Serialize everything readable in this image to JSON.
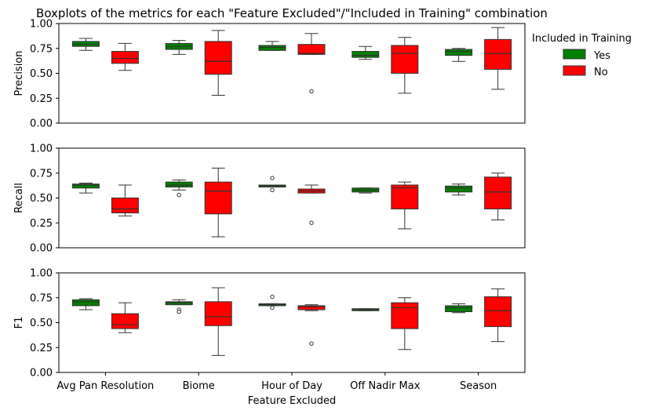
{
  "chart_data": {
    "type": "boxplot",
    "title": "Boxplots of the metrics for each \"Feature Excluded\"/\"Included in Training\" combination",
    "xlabel": "Feature Excluded",
    "categories": [
      "Avg Pan Resolution",
      "Biome",
      "Hour of Day",
      "Off Nadir Max",
      "Season"
    ],
    "legend": {
      "title": "Included in Training",
      "placement": "right-top",
      "entries": [
        {
          "label": "Yes",
          "color": "#008000"
        },
        {
          "label": "No",
          "color": "#ff0000"
        }
      ]
    },
    "colors": {
      "yes": "#008000",
      "no": "#ff0000",
      "frame": "#000000"
    },
    "grid": false,
    "panels": [
      {
        "ylabel": "Precision",
        "ylim": [
          0,
          1
        ],
        "yticks": [
          "0.00",
          "0.25",
          "0.50",
          "0.75",
          "1.00"
        ],
        "boxes": [
          {
            "category": "Avg Pan Resolution",
            "group": "Yes",
            "whislo": 0.73,
            "q1": 0.77,
            "med": 0.79,
            "q3": 0.82,
            "whishi": 0.85,
            "fliers": []
          },
          {
            "category": "Avg Pan Resolution",
            "group": "No",
            "whislo": 0.53,
            "q1": 0.6,
            "med": 0.65,
            "q3": 0.72,
            "whishi": 0.8,
            "fliers": []
          },
          {
            "category": "Biome",
            "group": "Yes",
            "whislo": 0.69,
            "q1": 0.74,
            "med": 0.77,
            "q3": 0.8,
            "whishi": 0.83,
            "fliers": []
          },
          {
            "category": "Biome",
            "group": "No",
            "whislo": 0.28,
            "q1": 0.49,
            "med": 0.62,
            "q3": 0.82,
            "whishi": 0.93,
            "fliers": []
          },
          {
            "category": "Hour of Day",
            "group": "Yes",
            "whislo": 0.73,
            "q1": 0.73,
            "med": 0.76,
            "q3": 0.78,
            "whishi": 0.82,
            "fliers": []
          },
          {
            "category": "Hour of Day",
            "group": "No",
            "whislo": 0.69,
            "q1": 0.69,
            "med": 0.7,
            "q3": 0.79,
            "whishi": 0.9,
            "fliers": [
              0.32
            ]
          },
          {
            "category": "Off Nadir Max",
            "group": "Yes",
            "whislo": 0.64,
            "q1": 0.66,
            "med": 0.68,
            "q3": 0.72,
            "whishi": 0.77,
            "fliers": []
          },
          {
            "category": "Off Nadir Max",
            "group": "No",
            "whislo": 0.3,
            "q1": 0.5,
            "med": 0.7,
            "q3": 0.78,
            "whishi": 0.86,
            "fliers": []
          },
          {
            "category": "Season",
            "group": "Yes",
            "whislo": 0.62,
            "q1": 0.68,
            "med": 0.72,
            "q3": 0.74,
            "whishi": 0.75,
            "fliers": []
          },
          {
            "category": "Season",
            "group": "No",
            "whislo": 0.34,
            "q1": 0.54,
            "med": 0.7,
            "q3": 0.84,
            "whishi": 0.96,
            "fliers": []
          }
        ]
      },
      {
        "ylabel": "Recall",
        "ylim": [
          0,
          1
        ],
        "yticks": [
          "0.00",
          "0.25",
          "0.50",
          "0.75",
          "1.00"
        ],
        "boxes": [
          {
            "category": "Avg Pan Resolution",
            "group": "Yes",
            "whislo": 0.55,
            "q1": 0.6,
            "med": 0.63,
            "q3": 0.64,
            "whishi": 0.65,
            "fliers": []
          },
          {
            "category": "Avg Pan Resolution",
            "group": "No",
            "whislo": 0.32,
            "q1": 0.35,
            "med": 0.39,
            "q3": 0.5,
            "whishi": 0.63,
            "fliers": []
          },
          {
            "category": "Biome",
            "group": "Yes",
            "whislo": 0.58,
            "q1": 0.61,
            "med": 0.63,
            "q3": 0.66,
            "whishi": 0.68,
            "fliers": [
              0.53
            ]
          },
          {
            "category": "Biome",
            "group": "No",
            "whislo": 0.11,
            "q1": 0.34,
            "med": 0.57,
            "q3": 0.66,
            "whishi": 0.8,
            "fliers": []
          },
          {
            "category": "Hour of Day",
            "group": "Yes",
            "whislo": 0.61,
            "q1": 0.61,
            "med": 0.62,
            "q3": 0.63,
            "whishi": 0.63,
            "fliers": [
              0.7,
              0.58
            ]
          },
          {
            "category": "Hour of Day",
            "group": "No",
            "whislo": 0.55,
            "q1": 0.55,
            "med": 0.57,
            "q3": 0.59,
            "whishi": 0.63,
            "fliers": [
              0.25
            ]
          },
          {
            "category": "Off Nadir Max",
            "group": "Yes",
            "whislo": 0.55,
            "q1": 0.56,
            "med": 0.58,
            "q3": 0.6,
            "whishi": 0.6,
            "fliers": []
          },
          {
            "category": "Off Nadir Max",
            "group": "No",
            "whislo": 0.19,
            "q1": 0.39,
            "med": 0.6,
            "q3": 0.63,
            "whishi": 0.66,
            "fliers": []
          },
          {
            "category": "Season",
            "group": "Yes",
            "whislo": 0.53,
            "q1": 0.56,
            "med": 0.6,
            "q3": 0.62,
            "whishi": 0.64,
            "fliers": []
          },
          {
            "category": "Season",
            "group": "No",
            "whislo": 0.28,
            "q1": 0.39,
            "med": 0.56,
            "q3": 0.71,
            "whishi": 0.75,
            "fliers": []
          }
        ]
      },
      {
        "ylabel": "F1",
        "ylim": [
          0,
          1
        ],
        "yticks": [
          "0.00",
          "0.25",
          "0.50",
          "0.75",
          "1.00"
        ],
        "boxes": [
          {
            "category": "Avg Pan Resolution",
            "group": "Yes",
            "whislo": 0.63,
            "q1": 0.67,
            "med": 0.71,
            "q3": 0.73,
            "whishi": 0.74,
            "fliers": []
          },
          {
            "category": "Avg Pan Resolution",
            "group": "No",
            "whislo": 0.4,
            "q1": 0.44,
            "med": 0.48,
            "q3": 0.59,
            "whishi": 0.7,
            "fliers": []
          },
          {
            "category": "Biome",
            "group": "Yes",
            "whislo": 0.68,
            "q1": 0.68,
            "med": 0.7,
            "q3": 0.71,
            "whishi": 0.73,
            "fliers": [
              0.63,
              0.61
            ]
          },
          {
            "category": "Biome",
            "group": "No",
            "whislo": 0.17,
            "q1": 0.47,
            "med": 0.56,
            "q3": 0.71,
            "whishi": 0.85,
            "fliers": []
          },
          {
            "category": "Hour of Day",
            "group": "Yes",
            "whislo": 0.67,
            "q1": 0.67,
            "med": 0.68,
            "q3": 0.69,
            "whishi": 0.69,
            "fliers": [
              0.76,
              0.65
            ]
          },
          {
            "category": "Hour of Day",
            "group": "No",
            "whislo": 0.62,
            "q1": 0.63,
            "med": 0.66,
            "q3": 0.67,
            "whishi": 0.68,
            "fliers": [
              0.29
            ]
          },
          {
            "category": "Off Nadir Max",
            "group": "Yes",
            "whislo": 0.62,
            "q1": 0.62,
            "med": 0.63,
            "q3": 0.64,
            "whishi": 0.64,
            "fliers": []
          },
          {
            "category": "Off Nadir Max",
            "group": "No",
            "whislo": 0.23,
            "q1": 0.44,
            "med": 0.65,
            "q3": 0.7,
            "whishi": 0.75,
            "fliers": []
          },
          {
            "category": "Season",
            "group": "Yes",
            "whislo": 0.6,
            "q1": 0.61,
            "med": 0.65,
            "q3": 0.67,
            "whishi": 0.69,
            "fliers": []
          },
          {
            "category": "Season",
            "group": "No",
            "whislo": 0.31,
            "q1": 0.46,
            "med": 0.62,
            "q3": 0.76,
            "whishi": 0.84,
            "fliers": []
          }
        ]
      }
    ]
  }
}
